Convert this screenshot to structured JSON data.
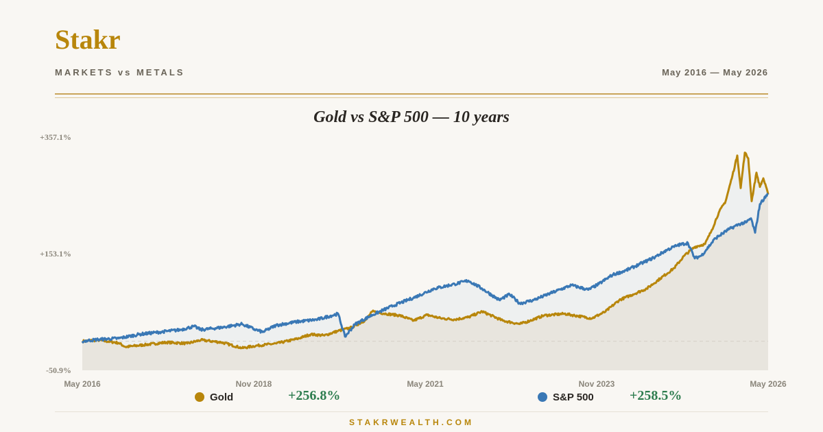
{
  "header": {
    "brand": "Stakr",
    "tagline": "MARKETS vs METALS",
    "date_range": "May 2016 — May 2026"
  },
  "footer": {
    "site": "STAKRWEALTH.COM"
  },
  "colors": {
    "gold": "#b8860b",
    "sp500": "#3a78b5",
    "positive": "#2e7d4f"
  },
  "chart_data": {
    "type": "line",
    "title": "Gold vs S&P 500 — 10 years",
    "y_unit": "% cumulative return",
    "ylim": [
      -50.9,
      357.1
    ],
    "y_tick_labels": [
      "+357.1%",
      "+153.1%",
      "-50.9%"
    ],
    "y_tick_values": [
      357.1,
      153.1,
      -50.9
    ],
    "x_range": [
      2016.37,
      2026.37
    ],
    "x_tick_labels": [
      "May 2016",
      "Nov 2018",
      "May 2021",
      "Nov 2023",
      "May 2026"
    ],
    "x_tick_values": [
      2016.37,
      2018.87,
      2021.37,
      2023.87,
      2026.37
    ],
    "baseline": 0,
    "grid": false,
    "legend_position": "bottom",
    "series": [
      {
        "name": "Gold",
        "color": "#b8860b",
        "total_return_label": "+256.8%",
        "points": [
          [
            2016.37,
            0
          ],
          [
            2016.6,
            2
          ],
          [
            2016.9,
            -3
          ],
          [
            2017.0,
            -10
          ],
          [
            2017.3,
            -6
          ],
          [
            2017.6,
            -2
          ],
          [
            2017.9,
            -4
          ],
          [
            2018.1,
            2
          ],
          [
            2018.4,
            -2
          ],
          [
            2018.7,
            -12
          ],
          [
            2018.9,
            -8
          ],
          [
            2019.2,
            -4
          ],
          [
            2019.5,
            4
          ],
          [
            2019.7,
            12
          ],
          [
            2019.9,
            10
          ],
          [
            2020.1,
            18
          ],
          [
            2020.3,
            24
          ],
          [
            2020.5,
            37
          ],
          [
            2020.6,
            52
          ],
          [
            2020.8,
            48
          ],
          [
            2021.0,
            45
          ],
          [
            2021.2,
            36
          ],
          [
            2021.4,
            46
          ],
          [
            2021.6,
            40
          ],
          [
            2021.8,
            38
          ],
          [
            2022.0,
            42
          ],
          [
            2022.2,
            52
          ],
          [
            2022.5,
            36
          ],
          [
            2022.75,
            30
          ],
          [
            2022.9,
            36
          ],
          [
            2023.1,
            45
          ],
          [
            2023.4,
            48
          ],
          [
            2023.6,
            44
          ],
          [
            2023.8,
            40
          ],
          [
            2024.0,
            52
          ],
          [
            2024.2,
            72
          ],
          [
            2024.4,
            82
          ],
          [
            2024.6,
            92
          ],
          [
            2024.8,
            110
          ],
          [
            2025.0,
            128
          ],
          [
            2025.15,
            150
          ],
          [
            2025.3,
            165
          ],
          [
            2025.45,
            170
          ],
          [
            2025.55,
            195
          ],
          [
            2025.65,
            225
          ],
          [
            2025.75,
            245
          ],
          [
            2025.85,
            290
          ],
          [
            2025.92,
            325
          ],
          [
            2025.97,
            268
          ],
          [
            2026.03,
            330
          ],
          [
            2026.08,
            320
          ],
          [
            2026.13,
            245
          ],
          [
            2026.2,
            295
          ],
          [
            2026.25,
            270
          ],
          [
            2026.3,
            285
          ],
          [
            2026.37,
            256.8
          ]
        ]
      },
      {
        "name": "S&P 500",
        "color": "#3a78b5",
        "total_return_label": "+258.5%",
        "points": [
          [
            2016.37,
            0
          ],
          [
            2016.6,
            3
          ],
          [
            2016.9,
            5
          ],
          [
            2017.2,
            12
          ],
          [
            2017.5,
            16
          ],
          [
            2017.8,
            20
          ],
          [
            2018.0,
            26
          ],
          [
            2018.1,
            20
          ],
          [
            2018.4,
            24
          ],
          [
            2018.7,
            30
          ],
          [
            2018.9,
            20
          ],
          [
            2019.0,
            16
          ],
          [
            2019.2,
            28
          ],
          [
            2019.5,
            34
          ],
          [
            2019.8,
            38
          ],
          [
            2020.1,
            48
          ],
          [
            2020.2,
            8
          ],
          [
            2020.35,
            30
          ],
          [
            2020.6,
            46
          ],
          [
            2020.9,
            62
          ],
          [
            2021.2,
            76
          ],
          [
            2021.5,
            92
          ],
          [
            2021.8,
            100
          ],
          [
            2022.0,
            106
          ],
          [
            2022.2,
            92
          ],
          [
            2022.45,
            72
          ],
          [
            2022.6,
            82
          ],
          [
            2022.75,
            66
          ],
          [
            2022.95,
            72
          ],
          [
            2023.2,
            84
          ],
          [
            2023.5,
            98
          ],
          [
            2023.75,
            90
          ],
          [
            2023.9,
            100
          ],
          [
            2024.1,
            116
          ],
          [
            2024.3,
            124
          ],
          [
            2024.5,
            135
          ],
          [
            2024.7,
            146
          ],
          [
            2024.9,
            160
          ],
          [
            2025.05,
            168
          ],
          [
            2025.2,
            172
          ],
          [
            2025.3,
            145
          ],
          [
            2025.4,
            150
          ],
          [
            2025.6,
            180
          ],
          [
            2025.8,
            196
          ],
          [
            2025.95,
            205
          ],
          [
            2026.05,
            208
          ],
          [
            2026.12,
            215
          ],
          [
            2026.18,
            190
          ],
          [
            2026.25,
            240
          ],
          [
            2026.37,
            258.5
          ]
        ]
      }
    ]
  }
}
